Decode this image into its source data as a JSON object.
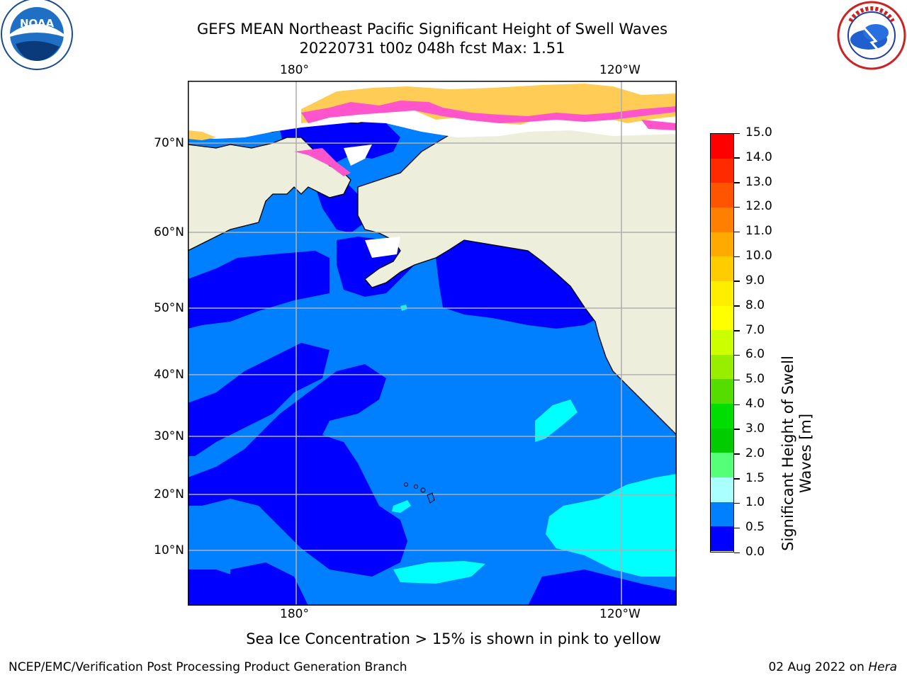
{
  "header": {
    "title_line1": "GEFS MEAN Northeast Pacific Significant Height of Swell Waves",
    "title_line2": "20220731 t00z 048h fcst   Max: 1.51"
  },
  "logos": {
    "noaa_text": "NOAA",
    "noaa_ring_text": "NATIONAL OCEANIC AND ATMOSPHERIC ADMINISTRATION · U.S. DEPARTMENT OF COMMERCE",
    "nws_ring_text": "NATIONAL WEATHER SERVICE"
  },
  "map": {
    "lon_labels_top": [
      "180°",
      "120°W"
    ],
    "lon_labels_bottom": [
      "180°",
      "120°W"
    ],
    "lat_labels": [
      "70°N",
      "60°N",
      "50°N",
      "40°N",
      "30°N",
      "20°N",
      "10°N"
    ],
    "colors": {
      "land": "#eeeedd",
      "coast": "#000000",
      "grid": "#b0b0b0",
      "swell_0_05": "#0000ff",
      "swell_05_10": "#007fff",
      "swell_15_20": "#00ffff",
      "swell_10_15": "#00ffff",
      "ice_pink": "#ff55cc",
      "ice_yellow": "#ffcc55"
    }
  },
  "colorbar": {
    "label_line1": "Significant Height of Swell",
    "label_line2": "Waves [m]",
    "ticks": [
      "15.0",
      "14.0",
      "13.0",
      "12.0",
      "11.0",
      "10.0",
      "9.0",
      "8.0",
      "7.0",
      "6.0",
      "5.0",
      "4.0",
      "3.0",
      "2.0",
      "1.5",
      "1.0",
      "0.5",
      "0.0"
    ],
    "colors": [
      "#ff0000",
      "#ff2a00",
      "#ff5500",
      "#ff7f00",
      "#ffaa00",
      "#ffcc00",
      "#ffee00",
      "#ffff00",
      "#ccff00",
      "#99ee00",
      "#55dd00",
      "#00dd00",
      "#00cc00",
      "#55ff77",
      "#aaffff",
      "#55ffff",
      "#00ffff",
      "#007fff",
      "#0000ff"
    ]
  },
  "caption": "Sea Ice Concentration > 15% is shown in pink to yellow",
  "footer": {
    "left": "NCEP/EMC/Verification Post Processing Product Generation Branch",
    "right_date": "02 Aug 2022 on ",
    "right_machine": "Hera"
  }
}
